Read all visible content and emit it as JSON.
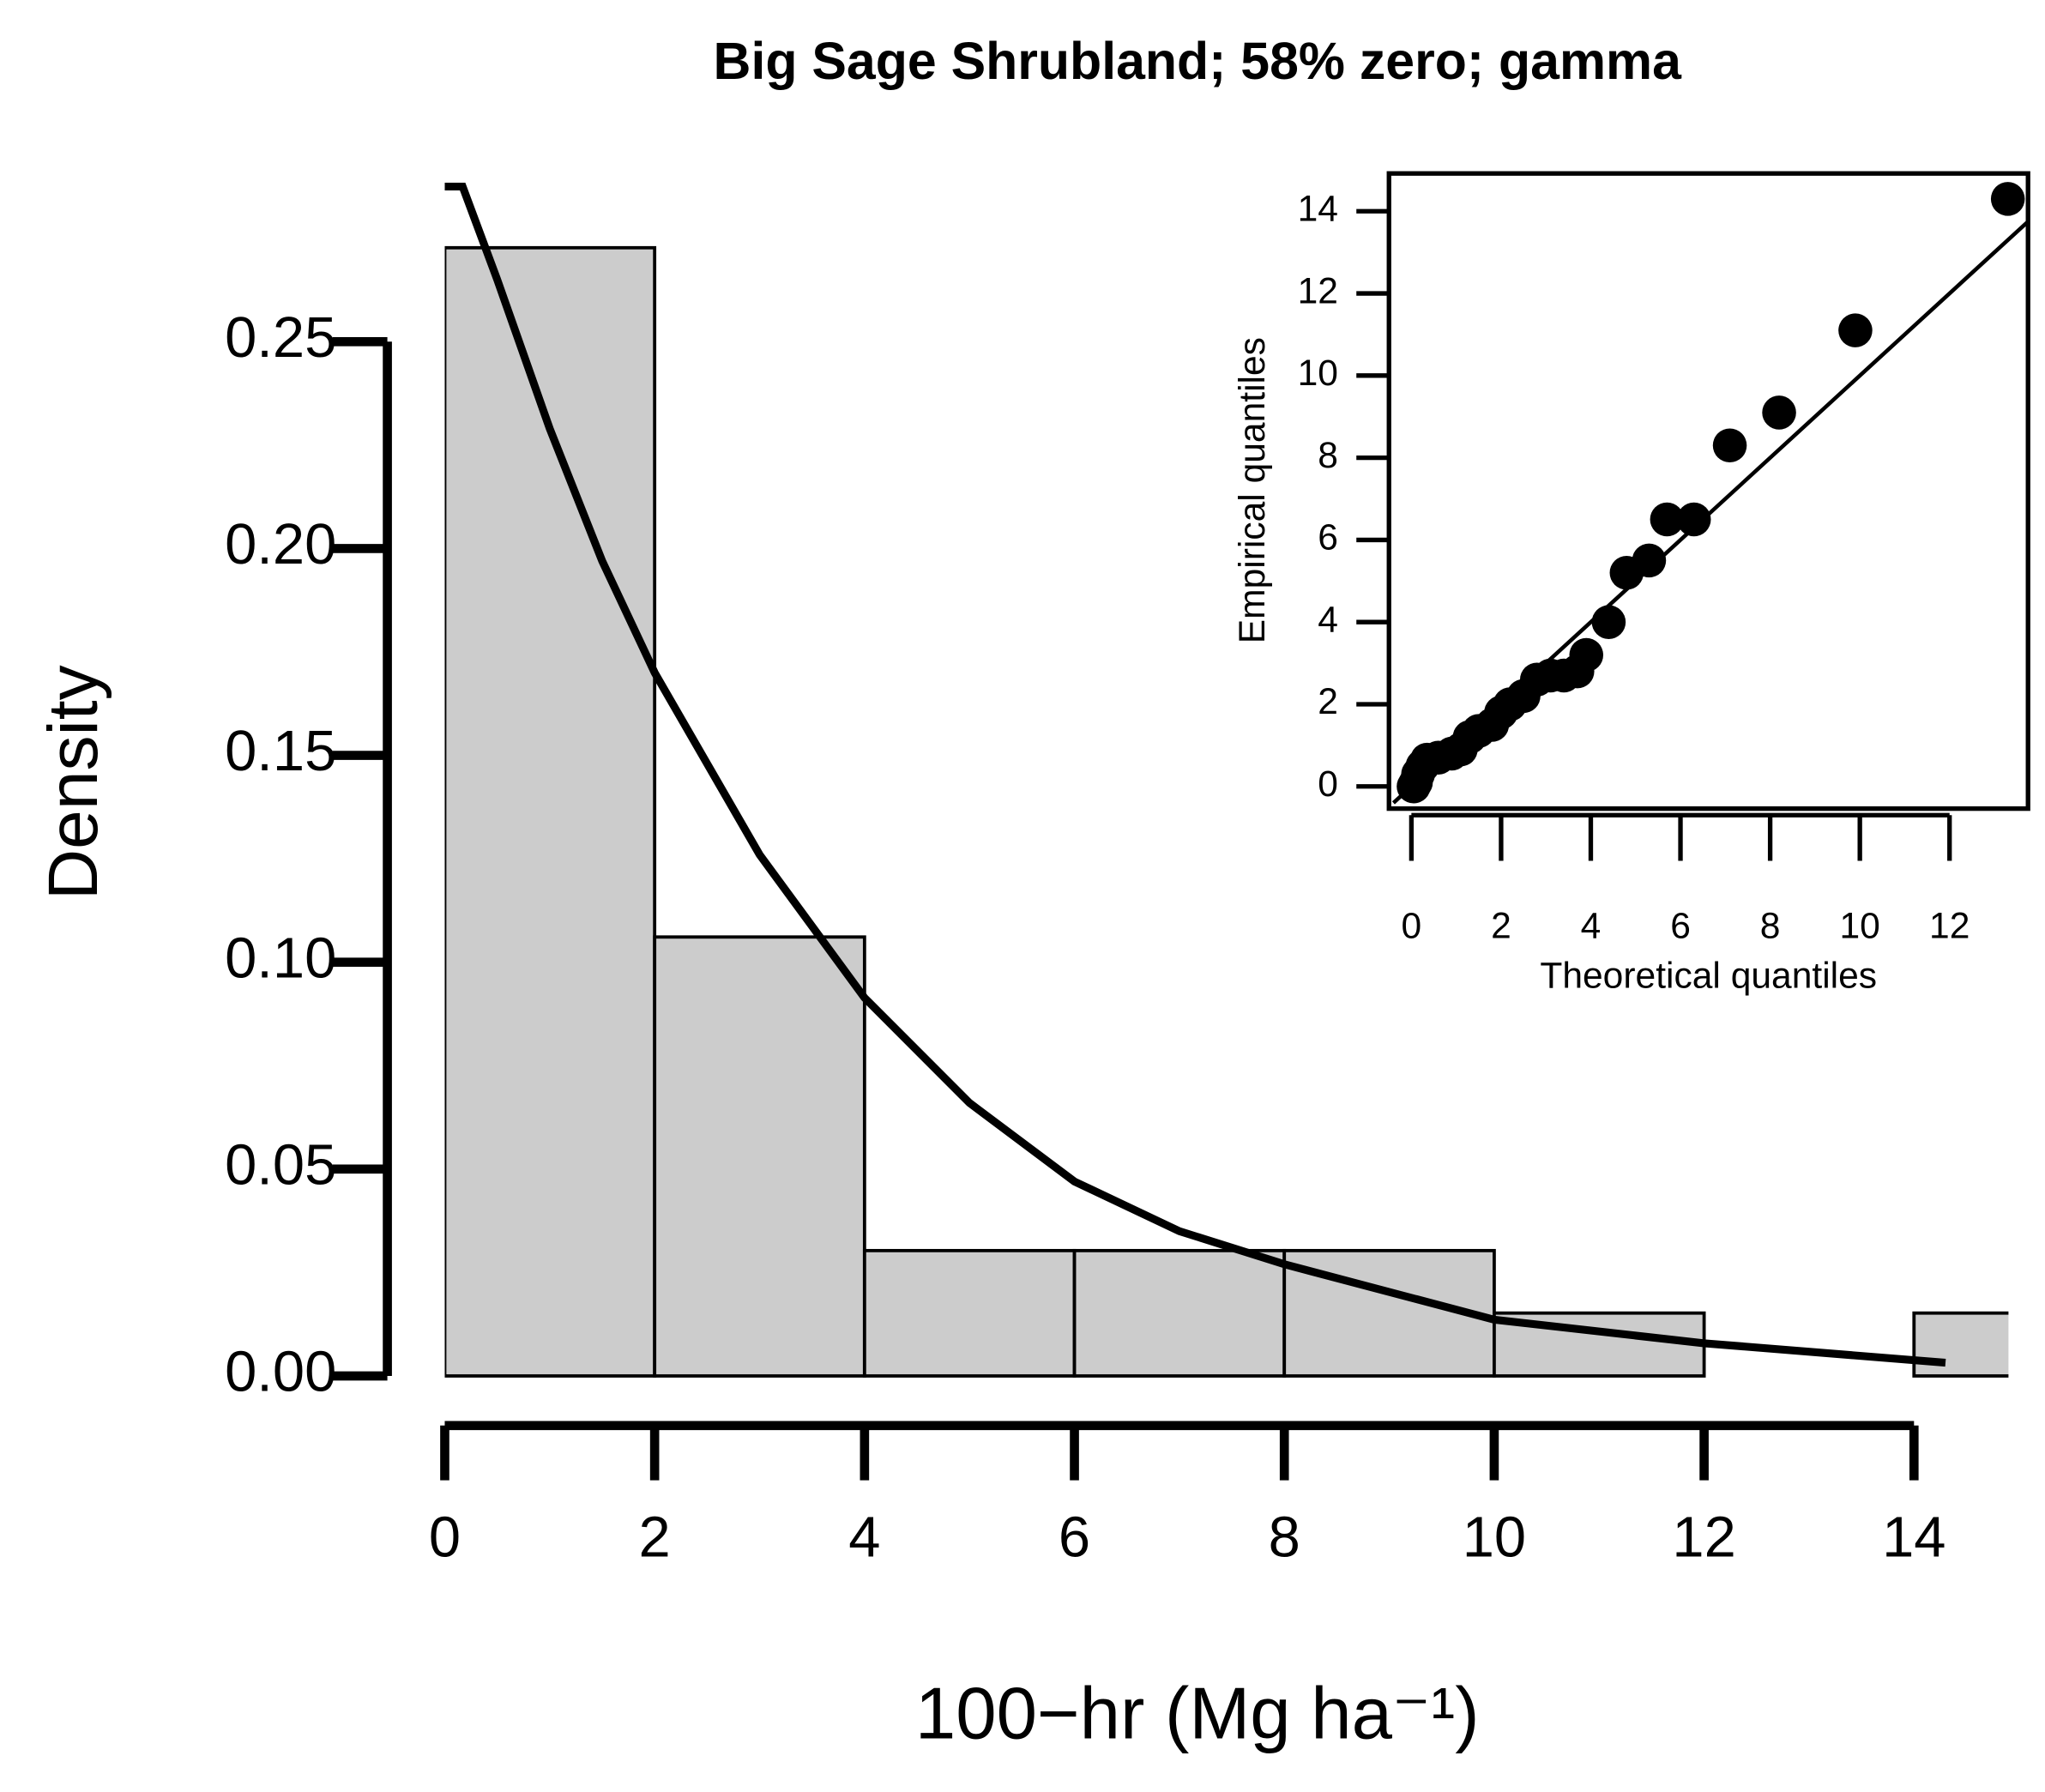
{
  "chart_data": [
    {
      "type": "histogram",
      "title": "Big Sage Shrubland; 58% zero; gamma",
      "xlabel": "100−hr (Mg ha⁻¹)",
      "ylabel": "Density",
      "bins": [
        0,
        2,
        4,
        6,
        8,
        10,
        12,
        14,
        16
      ],
      "values": [
        0.2727,
        0.1061,
        0.0303,
        0.0303,
        0.0303,
        0.0152,
        0,
        0.0152
      ],
      "color": "#cccccc",
      "curve": {
        "x": [
          0,
          0.17,
          0.5,
          1,
          1.5,
          2,
          3,
          4,
          5,
          6,
          7,
          8,
          10,
          12,
          14.3
        ],
        "values": [
          0.2875,
          0.2875,
          0.265,
          0.229,
          0.197,
          0.17,
          0.126,
          0.0914,
          0.066,
          0.047,
          0.035,
          0.027,
          0.0136,
          0.0079,
          0.0032
        ],
        "color": "#000000"
      },
      "xlim": [
        0,
        14.9
      ],
      "ylim": [
        0,
        0.2875
      ],
      "xticks": [
        0,
        2,
        4,
        6,
        8,
        10,
        12,
        14
      ],
      "yticks": [
        {
          "value": 0,
          "label": "0.00"
        },
        0.05,
        {
          "value": 0.1,
          "label": "0.10"
        },
        0.15,
        {
          "value": 0.2,
          "label": "0.20"
        },
        0.25
      ]
    },
    {
      "type": "scatter",
      "xlabel": "Theoretical quantiles",
      "ylabel": "Empirical quantiles",
      "x": [
        0.05,
        0.1,
        0.15,
        0.25,
        0.35,
        0.6,
        0.9,
        1.1,
        1.3,
        1.5,
        1.8,
        2.0,
        2.2,
        2.5,
        2.8,
        3.1,
        3.4,
        3.7,
        3.9,
        4.4,
        4.8,
        5.3,
        5.7,
        6.3,
        7.1,
        8.2,
        9.9,
        13.3
      ],
      "values": [
        0,
        0.1,
        0.3,
        0.5,
        0.65,
        0.7,
        0.8,
        0.9,
        1.2,
        1.35,
        1.5,
        1.8,
        2.0,
        2.2,
        2.6,
        2.7,
        2.7,
        2.8,
        3.2,
        4.0,
        5.2,
        5.5,
        6.5,
        6.5,
        8.3,
        9.1,
        11.1,
        14.3
      ],
      "color": "#000000",
      "reference_line": {
        "x": [
          -0.4,
          13.75
        ],
        "values": [
          -0.4,
          13.75
        ]
      },
      "xlim": [
        -0.5,
        13.75
      ],
      "ylim": [
        -0.54,
        14.92
      ],
      "xticks": [
        0,
        2,
        4,
        6,
        8,
        10,
        12
      ],
      "yticks": [
        0,
        2,
        4,
        6,
        8,
        10,
        12,
        14
      ]
    }
  ]
}
